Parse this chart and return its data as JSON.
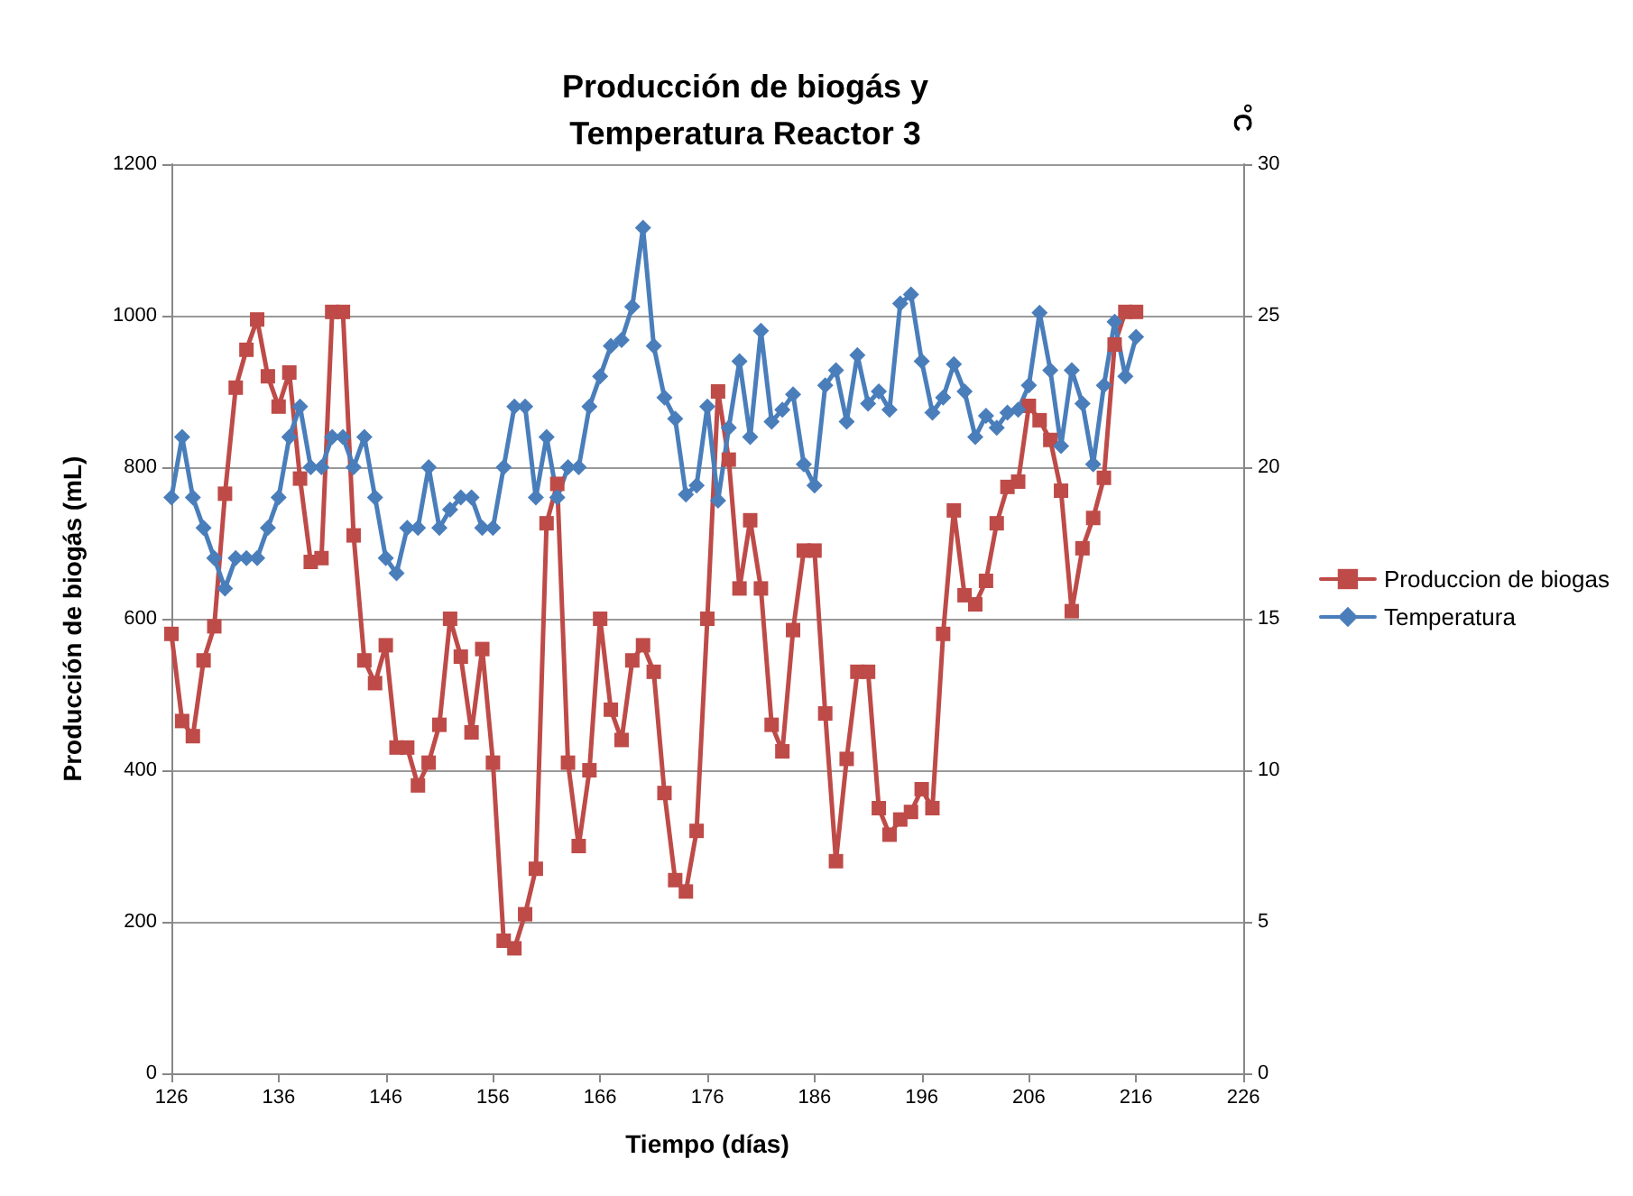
{
  "chart_data": {
    "type": "line",
    "title": "Producción de biogás y\nTemperatura Reactor 3",
    "xlabel": "Tiempo (días)",
    "ylabel": "Producción de biogás (mL)",
    "y2label": "°C",
    "x": [
      126,
      127,
      128,
      129,
      130,
      131,
      132,
      133,
      134,
      135,
      136,
      137,
      138,
      139,
      140,
      141,
      142,
      143,
      144,
      145,
      146,
      147,
      148,
      149,
      150,
      151,
      152,
      153,
      154,
      155,
      156,
      157,
      158,
      159,
      160,
      161,
      162,
      163,
      164,
      165,
      166,
      167,
      168,
      169,
      170,
      171,
      172,
      173,
      174,
      175,
      176,
      177,
      178,
      179,
      180,
      181,
      182,
      183,
      184,
      185,
      186,
      187,
      188,
      189,
      190,
      191,
      192,
      193,
      194,
      195,
      196,
      197,
      198,
      199,
      200,
      201,
      202,
      203,
      204,
      205,
      206,
      207,
      208,
      209,
      210,
      211,
      212,
      213,
      214,
      215,
      216
    ],
    "series": [
      {
        "name": "Produccion de biogas",
        "color": "#be4b48",
        "marker": "square",
        "values": [
          580,
          465,
          445,
          545,
          590,
          765,
          905,
          955,
          995,
          920,
          880,
          925,
          785,
          675,
          680,
          1005,
          1005,
          710,
          545,
          515,
          565,
          430,
          430,
          380,
          410,
          460,
          600,
          550,
          450,
          560,
          410,
          175,
          165,
          210,
          270,
          726,
          778,
          410,
          300,
          400,
          600,
          480,
          440,
          545,
          565,
          530,
          370,
          255,
          240,
          320,
          600,
          900,
          810,
          640,
          730,
          640,
          460,
          425,
          585,
          690,
          690,
          475,
          280,
          415,
          530,
          530,
          350,
          315,
          335,
          345,
          375,
          350,
          580,
          743,
          631,
          619,
          650,
          726,
          774,
          781,
          881,
          862,
          836,
          769,
          610,
          693,
          733,
          786,
          962,
          1005,
          1005
        ]
      },
      {
        "name": "Temperatura",
        "color": "#4a7ebb",
        "marker": "diamond",
        "axis": "y2",
        "values": [
          19,
          21,
          19,
          18,
          17,
          16,
          17,
          17,
          17,
          18,
          19,
          21,
          22,
          20,
          20,
          21,
          21,
          20,
          21,
          19,
          17,
          16.5,
          18,
          18,
          20,
          18,
          18.6,
          19,
          19,
          18,
          18,
          20,
          22,
          22,
          19,
          21,
          19,
          20,
          20,
          22,
          23,
          24,
          24.2,
          25.3,
          27.9,
          24,
          22.3,
          21.6,
          19.1,
          19.4,
          22,
          18.9,
          21.3,
          23.5,
          21,
          24.5,
          21.5,
          21.9,
          22.4,
          20.1,
          19.4,
          22.7,
          23.2,
          21.5,
          23.7,
          22.1,
          22.5,
          21.9,
          25.4,
          25.7,
          23.5,
          21.8,
          22.3,
          23.4,
          22.5,
          21,
          21.7,
          21.3,
          21.8,
          21.9,
          22.7,
          25.1,
          23.2,
          20.7,
          23.2,
          22.1,
          20.1,
          22.7,
          24.8,
          23,
          24.3
        ]
      }
    ],
    "xlim": [
      126,
      226
    ],
    "xticks": [
      126,
      136,
      146,
      156,
      166,
      176,
      186,
      196,
      206,
      216,
      226
    ],
    "ylim": [
      0,
      1200
    ],
    "yticks": [
      0,
      200,
      400,
      600,
      800,
      1000,
      1200
    ],
    "y2lim": [
      0,
      30
    ],
    "y2ticks": [
      0,
      5,
      10,
      15,
      20,
      25,
      30
    ],
    "grid": "y",
    "legend": "right",
    "line_style": "solid"
  }
}
